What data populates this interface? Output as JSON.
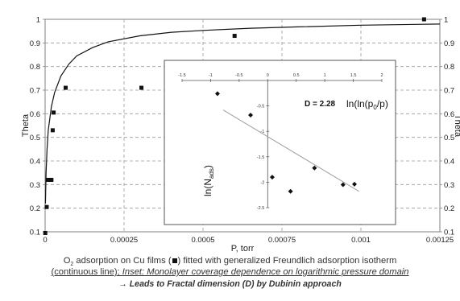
{
  "chart_data": [
    {
      "type": "scatter",
      "title": "",
      "xlabel": "P, torr",
      "ylabel": "Theta",
      "ylabel_right": "Theta",
      "xlim": [
        0,
        0.00125
      ],
      "ylim": [
        0.1,
        1
      ],
      "x_ticks": [
        0,
        0.00025,
        0.0005,
        0.00075,
        0.001,
        0.00125
      ],
      "x_tick_labels": [
        "0",
        "0.00025",
        "0.0005",
        "0.00075",
        "0.001",
        "0.00125"
      ],
      "y_ticks": [
        0.1,
        0.2,
        0.3,
        0.4,
        0.5,
        0.6,
        0.7,
        0.8,
        0.9,
        1
      ],
      "y_tick_labels": [
        "0.1",
        "0.2",
        "0.3",
        "0.4",
        "0.5",
        "0.6",
        "0.7",
        "0.8",
        "0.9",
        "1"
      ],
      "grid": true,
      "series": [
        {
          "marker": "square",
          "x": [
            5e-07,
            5e-06,
            1e-05,
            2e-05,
            2.4e-05,
            2.7e-05,
            6.5e-05,
            0.000305,
            0.0006,
            0.0012
          ],
          "y": [
            0.095,
            0.205,
            0.32,
            0.32,
            0.53,
            0.605,
            0.71,
            0.71,
            0.93,
            1.0
          ]
        },
        {
          "marker": "line",
          "model": "generalized Freundlich",
          "x": [
            1e-06,
            3e-06,
            6e-06,
            1e-05,
            2e-05,
            3e-05,
            5e-05,
            7.5e-05,
            0.0001,
            0.00015,
            0.0002,
            0.0003,
            0.0004,
            0.0005,
            0.00065,
            0.0008,
            0.001,
            0.00125
          ],
          "y": [
            0.22,
            0.35,
            0.45,
            0.53,
            0.63,
            0.69,
            0.76,
            0.81,
            0.845,
            0.88,
            0.905,
            0.93,
            0.945,
            0.953,
            0.962,
            0.968,
            0.975,
            0.98
          ]
        }
      ]
    },
    {
      "type": "scatter",
      "title": "",
      "xlabel": "ln(ln(p0/p)",
      "xlabel_parts": [
        "ln(ln(p",
        "0",
        "/p)"
      ],
      "ylabel": "ln(Nads)",
      "ylabel_parts": [
        "ln(N",
        "ads",
        ")"
      ],
      "annotation": "D = 2.28",
      "xlim": [
        -1.5,
        2
      ],
      "ylim": [
        -2.5,
        0
      ],
      "x_ticks": [
        -1.5,
        -1,
        -0.5,
        0,
        0.5,
        1,
        1.5,
        2
      ],
      "x_tick_labels": [
        "-1.5",
        "-1",
        "-0.5",
        "0",
        "0.5",
        "1",
        "1.5",
        "2"
      ],
      "y_ticks": [
        -0.5,
        -1,
        -1.5,
        -2,
        -2.5
      ],
      "y_tick_labels": [
        "-0.5",
        "-1",
        "-1.5",
        "-2",
        "-2.5"
      ],
      "series": [
        {
          "marker": "diamond",
          "x": [
            -0.88,
            -0.3,
            0.08,
            0.4,
            0.82,
            1.32,
            1.52
          ],
          "y": [
            -0.26,
            -0.68,
            -1.9,
            -2.18,
            -1.72,
            -2.05,
            -2.04
          ]
        },
        {
          "marker": "line",
          "model": "linear fit",
          "x": [
            -0.78,
            1.6
          ],
          "y": [
            -0.58,
            -2.18
          ]
        }
      ]
    }
  ],
  "caption": {
    "line1_prefix": "O",
    "line1_sub": "2",
    "line1_mid": " adsorption on Cu films (",
    "line1_suffix": ") fitted with generalized Freundlich adsorption isotherm",
    "line2_a": "(continuous line); ",
    "line2_b": "Inset: Monolayer coverage dependence on logarithmic pressure domain",
    "line3": "→ Leads to Fractal dimension (D) by Dubinin approach"
  }
}
